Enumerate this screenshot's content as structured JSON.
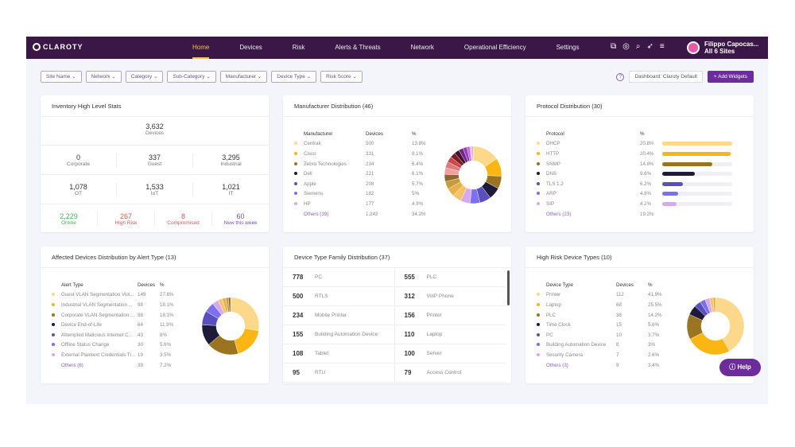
{
  "header": {
    "logo": "CLAROTY",
    "nav": [
      "Home",
      "Devices",
      "Risk",
      "Alerts & Threats",
      "Network",
      "Operational Efficiency",
      "Settings"
    ],
    "active": "Home",
    "user_name": "Filippo Capocas...",
    "user_sites": "All 6 Sites",
    "icons": [
      "screenshot-icon",
      "support-icon",
      "search-icon",
      "rocket-icon",
      "filter-icon"
    ]
  },
  "filters": [
    "Site Name",
    "Network",
    "Category",
    "Sub-Category",
    "Manufacturer",
    "Device Type",
    "Risk Score"
  ],
  "toolbar": {
    "help": "?",
    "dashboard": "Dashboard: Claroty Default",
    "add_widgets": "+ Add Widgets"
  },
  "colors": [
    "#fcd98a",
    "#fbb614",
    "#9a7420",
    "#1d1a3a",
    "#5a4fc0",
    "#7c6ff0",
    "#d6a9ef"
  ],
  "inventory": {
    "title": "Inventory High Level Stats",
    "total": {
      "value": "3,632",
      "label": "Devices"
    },
    "row1": [
      {
        "value": "0",
        "label": "Corporate"
      },
      {
        "value": "337",
        "label": "Guest"
      },
      {
        "value": "3,295",
        "label": "Industrial"
      }
    ],
    "row2": [
      {
        "value": "1,078",
        "label": "OT"
      },
      {
        "value": "1,533",
        "label": "IoT"
      },
      {
        "value": "1,021",
        "label": "IT"
      }
    ],
    "row3": [
      {
        "value": "2,229",
        "label": "Online",
        "color": "#4caf50"
      },
      {
        "value": "267",
        "label": "High Risk",
        "color": "#e0565b"
      },
      {
        "value": "8",
        "label": "Compromised",
        "color": "#e0565b"
      },
      {
        "value": "60",
        "label": "New this week",
        "color": "#7b4fb3"
      }
    ]
  },
  "manufacturer": {
    "title": "Manufacturer Distribution (46)",
    "headers": [
      "Manufacturer",
      "Devices",
      "%"
    ],
    "rows": [
      [
        "Centrak",
        "500",
        "13.8%"
      ],
      [
        "Cisco",
        "331",
        "9.1%"
      ],
      [
        "Zebra Technologies",
        "234",
        "6.4%"
      ],
      [
        "Dell",
        "221",
        "6.1%"
      ],
      [
        "Apple",
        "208",
        "5.7%"
      ],
      [
        "Siemens",
        "182",
        "5%"
      ],
      [
        "HP",
        "177",
        "4.9%"
      ]
    ],
    "others": [
      "Others (39)",
      "1,242",
      "34.2%"
    ],
    "pcts": [
      13.8,
      9.1,
      6.4,
      6.1,
      5.7,
      5,
      4.9
    ],
    "other_slices": [
      4.5,
      4.2,
      3.9,
      3.6,
      3.4,
      3.1,
      2.9,
      2.7,
      2.5,
      2.3,
      2.0,
      1.5,
      1.0,
      0.6
    ]
  },
  "protocol": {
    "title": "Protocol Distribution (30)",
    "headers": [
      "Protocol",
      "%"
    ],
    "rows": [
      [
        "DHCP",
        "20.8%"
      ],
      [
        "HTTP",
        "20.4%"
      ],
      [
        "SNMP",
        "14.8%"
      ],
      [
        "DNS",
        "9.6%"
      ],
      [
        "TLS 1.2",
        "6.2%"
      ],
      [
        "ARP",
        "4.8%"
      ],
      [
        "SIP",
        "4.2%"
      ]
    ],
    "others": [
      "Others (23)",
      "19.2%"
    ],
    "pcts": [
      20.8,
      20.4,
      14.8,
      9.6,
      6.2,
      4.8,
      4.2
    ]
  },
  "alerts": {
    "title": "Affected Devices Distribution by Alert Type (13)",
    "headers": [
      "Alert Type",
      "Devices",
      "%"
    ],
    "rows": [
      [
        "Guest VLAN Segmentation Viol...",
        "149",
        "27.6%"
      ],
      [
        "Industrial VLAN Segmentation ...",
        "98",
        "18.1%"
      ],
      [
        "Corporate VLAN Segmentation ...",
        "98",
        "18.1%"
      ],
      [
        "Device End-of-Life",
        "64",
        "11.9%"
      ],
      [
        "Attempted Malicious Internet C...",
        "43",
        "8%"
      ],
      [
        "Offline Status Change",
        "30",
        "5.6%"
      ],
      [
        "External Plaintext Credentials Tr...",
        "19",
        "3.5%"
      ]
    ],
    "others": [
      "Others (6)",
      "39",
      "7.2%"
    ],
    "pcts": [
      27.6,
      18.1,
      18.1,
      11.9,
      8,
      5.6,
      3.5
    ],
    "other_slices": [
      2.5,
      2,
      1.5,
      1.2
    ]
  },
  "device_family": {
    "title": "Device Type Family Distribution (37)",
    "items": [
      [
        "778",
        "PC"
      ],
      [
        "555",
        "PLC"
      ],
      [
        "500",
        "RTLS"
      ],
      [
        "312",
        "VoIP Phone"
      ],
      [
        "234",
        "Mobile Printer"
      ],
      [
        "156",
        "Printer"
      ],
      [
        "155",
        "Building Automation Device"
      ],
      [
        "110",
        "Laptop"
      ],
      [
        "108",
        "Tablet"
      ],
      [
        "100",
        "Server"
      ],
      [
        "95",
        "RTU"
      ],
      [
        "79",
        "Access Control"
      ]
    ]
  },
  "high_risk": {
    "title": "High Risk Device Types (10)",
    "headers": [
      "Device Type",
      "Devices",
      "%"
    ],
    "rows": [
      [
        "Printer",
        "112",
        "41.9%"
      ],
      [
        "Laptop",
        "68",
        "25.5%"
      ],
      [
        "PLC",
        "38",
        "14.2%"
      ],
      [
        "Time Clock",
        "15",
        "5.6%"
      ],
      [
        "PC",
        "10",
        "3.7%"
      ],
      [
        "Building Automation Device",
        "8",
        "3%"
      ],
      [
        "Security Camera",
        "7",
        "2.6%"
      ]
    ],
    "others": [
      "Others (3)",
      "9",
      "3.4%"
    ],
    "pcts": [
      41.9,
      25.5,
      14.2,
      5.6,
      3.7,
      3,
      2.6
    ],
    "other_slices": [
      2,
      1.4
    ]
  },
  "help": "Help"
}
